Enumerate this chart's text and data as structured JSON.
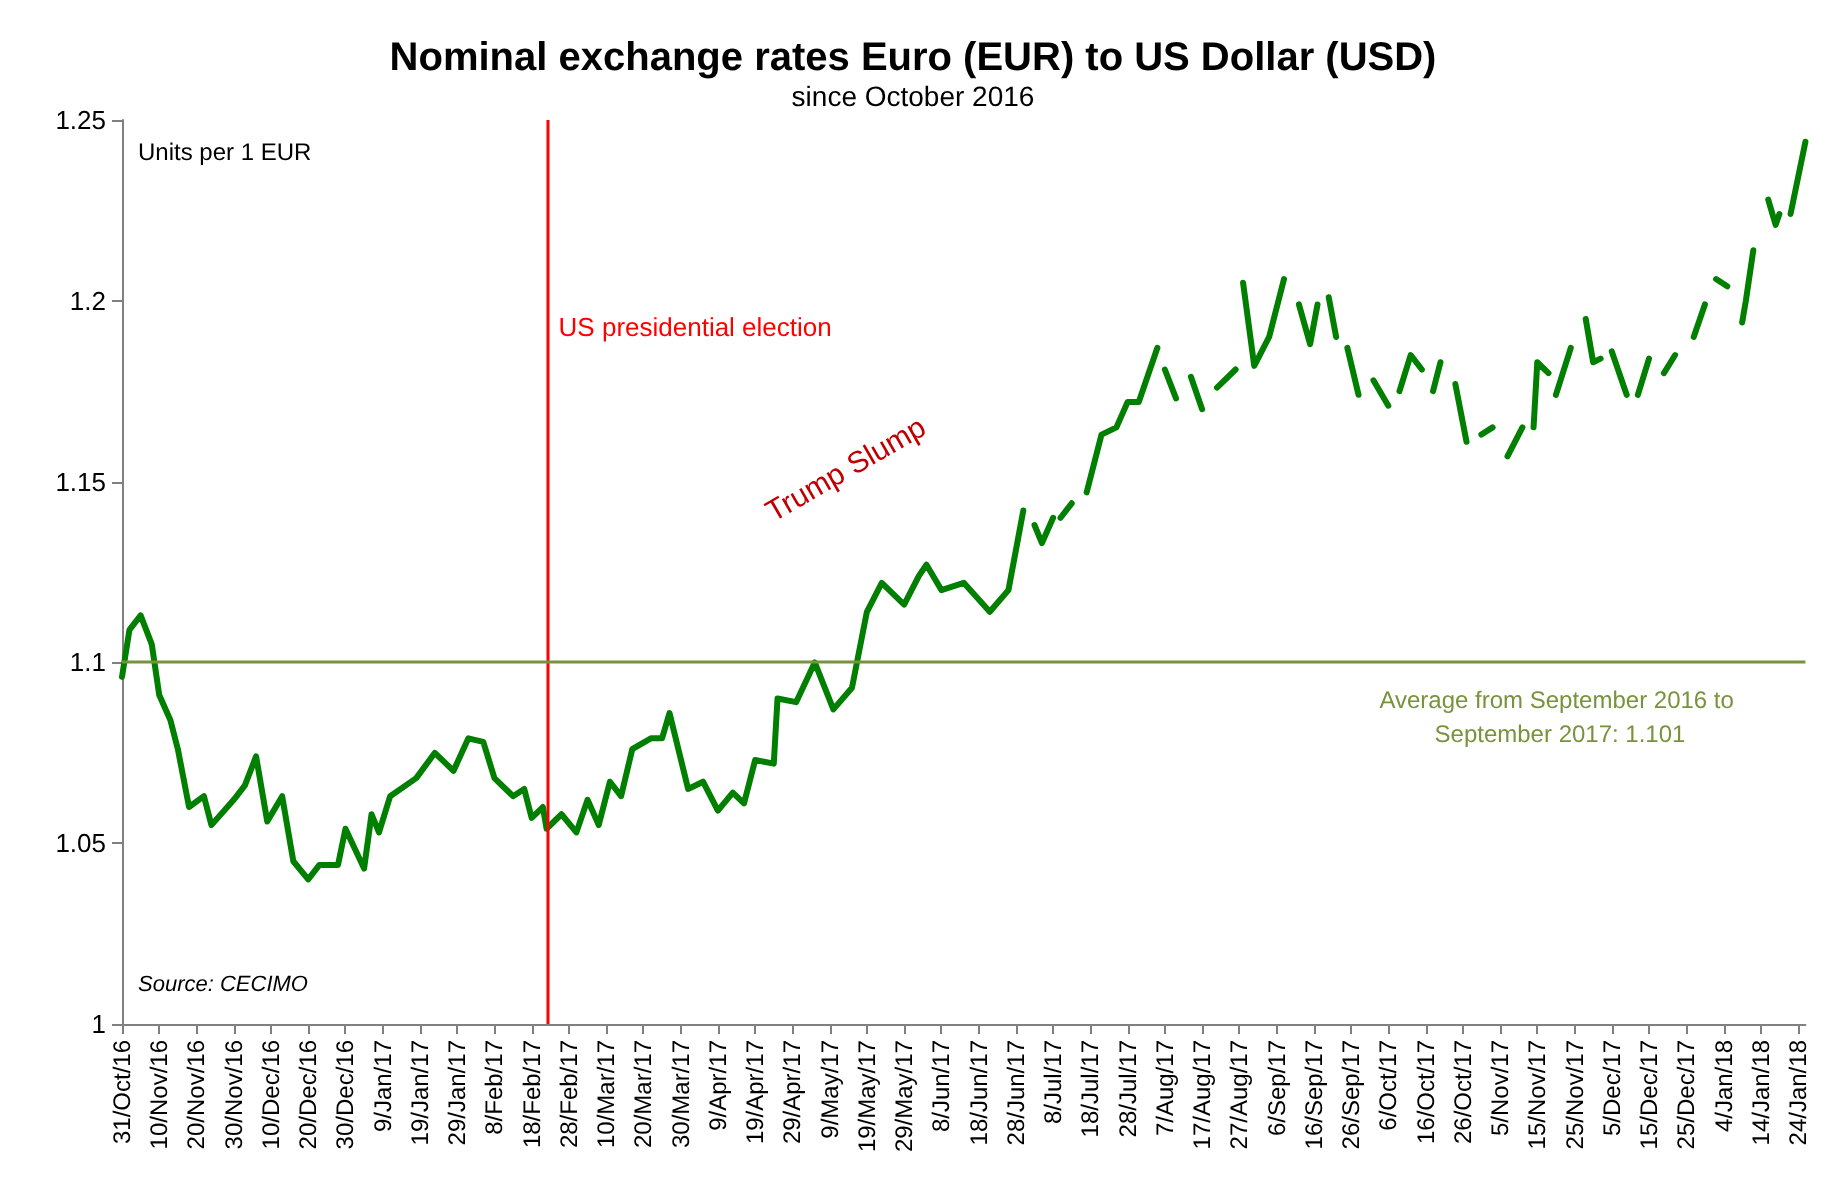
{
  "chart_data": {
    "type": "line",
    "title": "Nominal exchange rates Euro (EUR) to US Dollar (USD)",
    "subtitle": "since October 2016",
    "ylabel": "Units per 1 EUR",
    "annotations": [
      "Source: CECIMO",
      "Trump Slump"
    ],
    "x": [
      "2016-10-31",
      "2016-11-02",
      "2016-11-05",
      "2016-11-08",
      "2016-11-10",
      "2016-11-13",
      "2016-11-15",
      "2016-11-18",
      "2016-11-22",
      "2016-11-24",
      "2016-11-30",
      "2016-12-03",
      "2016-12-06",
      "2016-12-09",
      "2016-12-13",
      "2016-12-16",
      "2016-12-20",
      "2016-12-23",
      "2016-12-28",
      "2016-12-30",
      "2017-01-04",
      "2017-01-06",
      "2017-01-08",
      "2017-01-11",
      "2017-01-18",
      "2017-01-23",
      "2017-01-28",
      "2017-02-01",
      "2017-02-05",
      "2017-02-08",
      "2017-02-13",
      "2017-02-16",
      "2017-02-18",
      "2017-02-21",
      "2017-02-22",
      "2017-02-26",
      "2017-03-02",
      "2017-03-05",
      "2017-03-08",
      "2017-03-11",
      "2017-03-14",
      "2017-03-17",
      "2017-03-22",
      "2017-03-25",
      "2017-03-27",
      "2017-04-01",
      "2017-04-05",
      "2017-04-09",
      "2017-04-13",
      "2017-04-16",
      "2017-04-19",
      "2017-04-24",
      "2017-04-25",
      "2017-04-30",
      "2017-05-05",
      "2017-05-10",
      "2017-05-15",
      "2017-05-19",
      "2017-05-23",
      "2017-05-29",
      "2017-06-02",
      "2017-06-04",
      "2017-06-08",
      "2017-06-14",
      "2017-06-21",
      "2017-06-26",
      "2017-06-30",
      "2017-07-01",
      "2017-07-03",
      "2017-07-05",
      "2017-07-08",
      "2017-07-09",
      "2017-07-10",
      "2017-07-13",
      "2017-07-15",
      "2017-07-17",
      "2017-07-21",
      "2017-07-25",
      "2017-07-28",
      "2017-07-31",
      "2017-08-05",
      "2017-08-06",
      "2017-08-07",
      "2017-08-10",
      "2017-08-12",
      "2017-08-14",
      "2017-08-17",
      "2017-08-19",
      "2017-08-21",
      "2017-08-26",
      "2017-08-27",
      "2017-08-28",
      "2017-08-31",
      "2017-09-04",
      "2017-09-08",
      "2017-09-10",
      "2017-09-12",
      "2017-09-15",
      "2017-09-17",
      "2017-09-18",
      "2017-09-20",
      "2017-09-22",
      "2017-09-23",
      "2017-09-25",
      "2017-09-28",
      "2017-09-30",
      "2017-10-02",
      "2017-10-06",
      "2017-10-07",
      "2017-10-09",
      "2017-10-12",
      "2017-10-15",
      "2017-10-16",
      "2017-10-18",
      "2017-10-20",
      "2017-10-22",
      "2017-10-24",
      "2017-10-27",
      "2017-10-29",
      "2017-10-31",
      "2017-11-03",
      "2017-11-05",
      "2017-11-07",
      "2017-11-11",
      "2017-11-12",
      "2017-11-14",
      "2017-11-15",
      "2017-11-18",
      "2017-11-19",
      "2017-11-20",
      "2017-11-24",
      "2017-11-26",
      "2017-11-28",
      "2017-11-30",
      "2017-12-02",
      "2017-12-03",
      "2017-12-05",
      "2017-12-09",
      "2017-12-10",
      "2017-12-12",
      "2017-12-15",
      "2017-12-17",
      "2017-12-19",
      "2017-12-22",
      "2017-12-24",
      "2017-12-27",
      "2017-12-30",
      "2017-12-31",
      "2018-01-02",
      "2018-01-05",
      "2018-01-07",
      "2018-01-09",
      "2018-01-10",
      "2018-01-12",
      "2018-01-14",
      "2018-01-16",
      "2018-01-18",
      "2018-01-19",
      "2018-01-20",
      "2018-01-22",
      "2018-01-26"
    ],
    "series": [
      {
        "color": "#007f00",
        "values": [
          1.096,
          1.109,
          1.113,
          1.105,
          1.091,
          1.084,
          1.076,
          1.06,
          1.063,
          1.055,
          1.062,
          1.066,
          1.074,
          1.056,
          1.063,
          1.045,
          1.04,
          1.044,
          1.044,
          1.054,
          1.043,
          1.058,
          1.053,
          1.063,
          1.068,
          1.075,
          1.07,
          1.079,
          1.078,
          1.068,
          1.063,
          1.065,
          1.057,
          1.06,
          1.054,
          1.058,
          1.053,
          1.062,
          1.055,
          1.067,
          1.063,
          1.076,
          1.079,
          1.079,
          1.086,
          1.065,
          1.067,
          1.059,
          1.064,
          1.061,
          1.073,
          1.072,
          1.09,
          1.089,
          1.1,
          1.087,
          1.093,
          1.114,
          1.122,
          1.116,
          1.124,
          1.127,
          1.12,
          1.122,
          1.114,
          1.12,
          1.142,
          null,
          1.138,
          1.133,
          1.14,
          null,
          1.14,
          1.144,
          null,
          1.147,
          1.163,
          1.165,
          1.172,
          1.172,
          1.187,
          null,
          1.181,
          1.173,
          null,
          1.179,
          1.17,
          null,
          1.176,
          1.181,
          null,
          1.205,
          1.182,
          1.19,
          1.206,
          null,
          1.199,
          1.188,
          1.199,
          null,
          1.201,
          1.19,
          null,
          1.187,
          1.174,
          null,
          1.178,
          1.171,
          null,
          1.175,
          1.185,
          1.181,
          null,
          1.175,
          1.183,
          null,
          1.177,
          1.161,
          null,
          1.163,
          1.165,
          null,
          1.157,
          1.165,
          null,
          1.165,
          1.183,
          1.18,
          null,
          1.174,
          1.187,
          null,
          1.195,
          1.183,
          1.184,
          null,
          1.186,
          1.174,
          null,
          1.174,
          1.184,
          null,
          1.18,
          1.185,
          null,
          1.19,
          1.199,
          null,
          1.206,
          1.204,
          null,
          1.194,
          1.2,
          1.214,
          null,
          1.228,
          1.221,
          1.224,
          null,
          1.224,
          1.244
        ]
      }
    ],
    "xlim": [
      "2016-10-31",
      "2018-01-26"
    ],
    "xticks": [
      {
        "value": "2016-10-31",
        "label": "31/Oct/16"
      },
      {
        "value": "2016-11-10",
        "label": "10/Nov/16"
      },
      {
        "value": "2016-11-20",
        "label": "20/Nov/16"
      },
      {
        "value": "2016-11-30",
        "label": "30/Nov/16"
      },
      {
        "value": "2016-12-10",
        "label": "10/Dec/16"
      },
      {
        "value": "2016-12-20",
        "label": "20/Dec/16"
      },
      {
        "value": "2016-12-30",
        "label": "30/Dec/16"
      },
      {
        "value": "2017-01-09",
        "label": "9/Jan/17"
      },
      {
        "value": "2017-01-19",
        "label": "19/Jan/17"
      },
      {
        "value": "2017-01-29",
        "label": "29/Jan/17"
      },
      {
        "value": "2017-02-08",
        "label": "8/Feb/17"
      },
      {
        "value": "2017-02-18",
        "label": "18/Feb/17"
      },
      {
        "value": "2017-02-28",
        "label": "28/Feb/17"
      },
      {
        "value": "2017-03-10",
        "label": "10/Mar/17"
      },
      {
        "value": "2017-03-20",
        "label": "20/Mar/17"
      },
      {
        "value": "2017-03-30",
        "label": "30/Mar/17"
      },
      {
        "value": "2017-04-09",
        "label": "9/Apr/17"
      },
      {
        "value": "2017-04-19",
        "label": "19/Apr/17"
      },
      {
        "value": "2017-04-29",
        "label": "29/Apr/17"
      },
      {
        "value": "2017-05-09",
        "label": "9/May/17"
      },
      {
        "value": "2017-05-19",
        "label": "19/May/17"
      },
      {
        "value": "2017-05-29",
        "label": "29/May/17"
      },
      {
        "value": "2017-06-08",
        "label": "8/Jun/17"
      },
      {
        "value": "2017-06-18",
        "label": "18/Jun/17"
      },
      {
        "value": "2017-06-28",
        "label": "28/Jun/17"
      },
      {
        "value": "2017-07-08",
        "label": "8/Jul/17"
      },
      {
        "value": "2017-07-18",
        "label": "18/Jul/17"
      },
      {
        "value": "2017-07-28",
        "label": "28/Jul/17"
      },
      {
        "value": "2017-08-07",
        "label": "7/Aug/17"
      },
      {
        "value": "2017-08-17",
        "label": "17/Aug/17"
      },
      {
        "value": "2017-08-27",
        "label": "27/Aug/17"
      },
      {
        "value": "2017-09-06",
        "label": "6/Sep/17"
      },
      {
        "value": "2017-09-16",
        "label": "16/Sep/17"
      },
      {
        "value": "2017-09-26",
        "label": "26/Sep/17"
      },
      {
        "value": "2017-10-06",
        "label": "6/Oct/17"
      },
      {
        "value": "2017-10-16",
        "label": "16/Oct/17"
      },
      {
        "value": "2017-10-26",
        "label": "26/Oct/17"
      },
      {
        "value": "2017-11-05",
        "label": "5/Nov/17"
      },
      {
        "value": "2017-11-15",
        "label": "15/Nov/17"
      },
      {
        "value": "2017-11-25",
        "label": "25/Nov/17"
      },
      {
        "value": "2017-12-05",
        "label": "5/Dec/17"
      },
      {
        "value": "2017-12-15",
        "label": "15/Dec/17"
      },
      {
        "value": "2017-12-25",
        "label": "25/Dec/17"
      },
      {
        "value": "2018-01-04",
        "label": "4/Jan/18"
      },
      {
        "value": "2018-01-14",
        "label": "14/Jan/18"
      },
      {
        "value": "2018-01-24",
        "label": "24/Jan/18"
      }
    ],
    "ylim": [
      1,
      1.25
    ],
    "yticks": [
      1,
      1.05,
      1.1,
      1.15,
      1.2,
      1.25
    ],
    "ref_lines": [
      {
        "axis": "x",
        "value": "2017-02-22",
        "label": "US presidential election",
        "color": "#ff0000"
      },
      {
        "axis": "y",
        "value": 1.101,
        "label": "Average from September 2016 to September 2017: 1.101",
        "color": "#77933c"
      }
    ],
    "grid": false,
    "marker": "none",
    "line_style": "solid"
  }
}
